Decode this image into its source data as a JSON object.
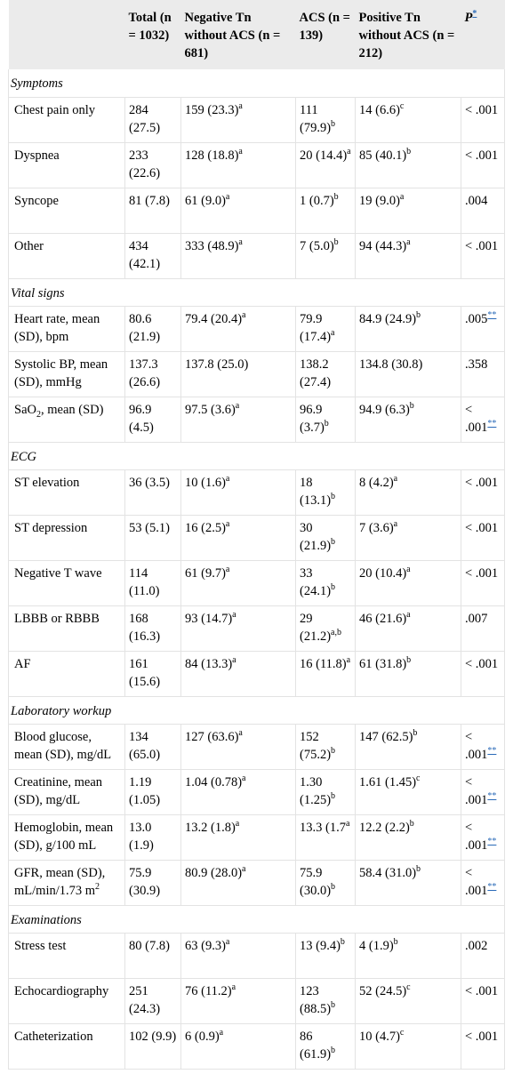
{
  "header": {
    "col0": "",
    "col1": "Total (n = 1032)",
    "col2": "Negative Tn without ACS (n = 681)",
    "col3": "ACS (n = 139)",
    "col4": "Positive Tn without ACS (n = 212)",
    "col5": "P",
    "col5_sup": "*"
  },
  "sections": [
    {
      "title": "Symptoms",
      "rows": [
        {
          "label": "Chest pain only",
          "label_sub": "",
          "label_rest": "",
          "total": "284 (27.5)",
          "neg": "159 (23.3)",
          "neg_sup": "a",
          "acs": "111 (79.9)",
          "acs_sup": "b",
          "pos": "14 (6.6)",
          "pos_sup": "c",
          "p": "< .001",
          "p_sup": ""
        },
        {
          "label": "Dyspnea",
          "label_sub": "",
          "label_rest": "",
          "total": "233 (22.6)",
          "neg": "128 (18.8)",
          "neg_sup": "a",
          "acs": "20 (14.4)",
          "acs_sup": "a",
          "pos": "85 (40.1)",
          "pos_sup": "b",
          "p": "< .001",
          "p_sup": ""
        },
        {
          "label": "Syncope",
          "label_sub": "",
          "label_rest": "",
          "total": "81 (7.8)",
          "neg": "61 (9.0)",
          "neg_sup": "a",
          "acs": "1 (0.7)",
          "acs_sup": "b",
          "pos": "19 (9.0)",
          "pos_sup": "a",
          "p": ".004",
          "p_sup": ""
        },
        {
          "label": "Other",
          "label_sub": "",
          "label_rest": "",
          "total": "434 (42.1)",
          "neg": "333 (48.9)",
          "neg_sup": "a",
          "acs": "7 (5.0)",
          "acs_sup": "b",
          "pos": "94 (44.3)",
          "pos_sup": "a",
          "p": "< .001",
          "p_sup": ""
        }
      ]
    },
    {
      "title": "Vital signs",
      "rows": [
        {
          "label": "Heart rate, mean (SD), bpm",
          "label_sub": "",
          "label_rest": "",
          "total": "80.6 (21.9)",
          "neg": "79.4 (20.4)",
          "neg_sup": "a",
          "acs": "79.9 (17.4)",
          "acs_sup": "a",
          "pos": "84.9 (24.9)",
          "pos_sup": "b",
          "p": ".005",
          "p_sup": "**"
        },
        {
          "label": "Systolic BP, mean (SD), mmHg",
          "label_sub": "",
          "label_rest": "",
          "total": "137.3 (26.6)",
          "neg": "137.8 (25.0)",
          "neg_sup": "",
          "acs": "138.2 (27.4)",
          "acs_sup": "",
          "pos": "134.8 (30.8)",
          "pos_sup": "",
          "p": ".358",
          "p_sup": ""
        },
        {
          "label": "SaO",
          "label_sub": "2",
          "label_rest": ", mean (SD)",
          "total": "96.9 (4.5)",
          "neg": "97.5 (3.6)",
          "neg_sup": "a",
          "acs": "96.9 (3.7)",
          "acs_sup": "b",
          "pos": "94.9 (6.3)",
          "pos_sup": "b",
          "p": "< .001",
          "p_sup": "**"
        }
      ]
    },
    {
      "title": "ECG",
      "rows": [
        {
          "label": "ST elevation",
          "label_sub": "",
          "label_rest": "",
          "total": "36 (3.5)",
          "neg": "10 (1.6)",
          "neg_sup": "a",
          "acs": "18 (13.1)",
          "acs_sup": "b",
          "pos": "8 (4.2)",
          "pos_sup": "a",
          "p": "< .001",
          "p_sup": ""
        },
        {
          "label": "ST depression",
          "label_sub": "",
          "label_rest": "",
          "total": "53 (5.1)",
          "neg": "16 (2.5)",
          "neg_sup": "a",
          "acs": "30 (21.9)",
          "acs_sup": "b",
          "pos": "7 (3.6)",
          "pos_sup": "a",
          "p": "< .001",
          "p_sup": ""
        },
        {
          "label": "Negative T wave",
          "label_sub": "",
          "label_rest": "",
          "total": "114 (11.0)",
          "neg": "61 (9.7)",
          "neg_sup": "a",
          "acs": "33 (24.1)",
          "acs_sup": "b",
          "pos": "20 (10.4)",
          "pos_sup": "a",
          "p": "< .001",
          "p_sup": ""
        },
        {
          "label": "LBBB or RBBB",
          "label_sub": "",
          "label_rest": "",
          "total": "168 (16.3)",
          "neg": "93 (14.7)",
          "neg_sup": "a",
          "acs": "29 (21.2)",
          "acs_sup": "a,b",
          "pos": "46 (21.6)",
          "pos_sup": "a",
          "p": ".007",
          "p_sup": ""
        },
        {
          "label": "AF",
          "label_sub": "",
          "label_rest": "",
          "total": "161 (15.6)",
          "neg": "84 (13.3)",
          "neg_sup": "a",
          "acs": "16 (11.8)",
          "acs_sup": "a",
          "pos": "61 (31.8)",
          "pos_sup": "b",
          "p": "< .001",
          "p_sup": ""
        }
      ]
    },
    {
      "title": "Laboratory workup",
      "rows": [
        {
          "label": "Blood glucose, mean (SD), mg/dL",
          "label_sub": "",
          "label_rest": "",
          "total": "134 (65.0)",
          "neg": "127 (63.6)",
          "neg_sup": "a",
          "acs": "152 (75.2)",
          "acs_sup": "b",
          "pos": "147 (62.5)",
          "pos_sup": "b",
          "p": "< .001",
          "p_sup": "**"
        },
        {
          "label": "Creatinine, mean (SD), mg/dL",
          "label_sub": "",
          "label_rest": "",
          "total": "1.19 (1.05)",
          "neg": "1.04 (0.78)",
          "neg_sup": "a",
          "acs": "1.30 (1.25)",
          "acs_sup": "b",
          "pos": "1.61 (1.45)",
          "pos_sup": "c",
          "p": "< .001",
          "p_sup": "**"
        },
        {
          "label": "Hemoglobin, mean (SD), g/100 mL",
          "label_sub": "",
          "label_rest": "",
          "total": "13.0 (1.9)",
          "neg": "13.2 (1.8)",
          "neg_sup": "a",
          "acs": "13.3 (1.7",
          "acs_sup": "a",
          "pos": "12.2 (2.2)",
          "pos_sup": "b",
          "p": "< .001",
          "p_sup": "**"
        },
        {
          "label": "GFR, mean (SD), mL/min/1.73 m",
          "label_sub": "",
          "label_rest": "",
          "label_sup": "2",
          "total": "75.9 (30.9)",
          "neg": "80.9 (28.0)",
          "neg_sup": "a",
          "acs": "75.9 (30.0)",
          "acs_sup": "b",
          "pos": "58.4 (31.0)",
          "pos_sup": "b",
          "p": "< .001",
          "p_sup": "**"
        }
      ]
    },
    {
      "title": "Examinations",
      "rows": [
        {
          "label": "Stress test",
          "label_sub": "",
          "label_rest": "",
          "total": "80 (7.8)",
          "neg": "63 (9.3)",
          "neg_sup": "a",
          "acs": "13 (9.4)",
          "acs_sup": "b",
          "pos": "4 (1.9)",
          "pos_sup": "b",
          "p": ".002",
          "p_sup": ""
        },
        {
          "label": "Echocardiography",
          "label_sub": "",
          "label_rest": "",
          "total": "251 (24.3)",
          "neg": "76 (11.2)",
          "neg_sup": "a",
          "acs": "123 (88.5)",
          "acs_sup": "b",
          "pos": "52 (24.5)",
          "pos_sup": "c",
          "p": "< .001",
          "p_sup": ""
        },
        {
          "label": "Catheterization",
          "label_sub": "",
          "label_rest": "",
          "total": "102 (9.9)",
          "neg": "6 (0.9)",
          "neg_sup": "a",
          "acs": "86 (61.9)",
          "acs_sup": "b",
          "pos": "10 (4.7)",
          "pos_sup": "c",
          "p": "< .001",
          "p_sup": ""
        }
      ]
    }
  ]
}
